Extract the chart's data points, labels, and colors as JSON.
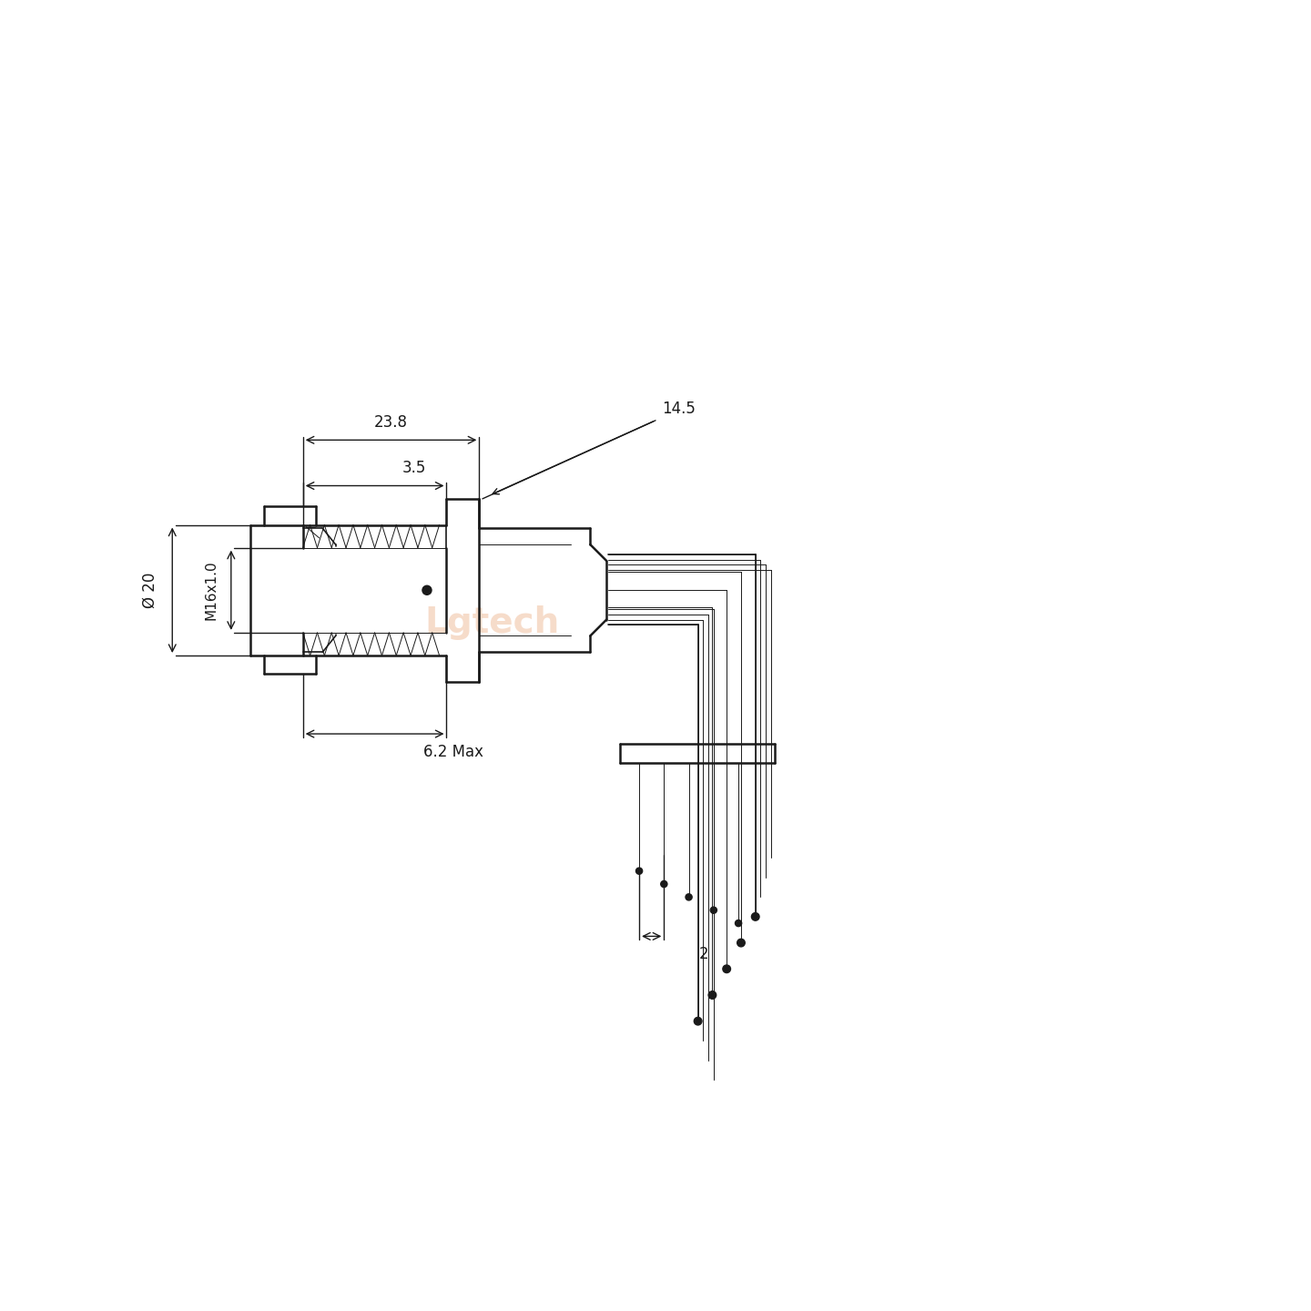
{
  "bg_color": "#ffffff",
  "line_color": "#1a1a1a",
  "figsize": [
    14.4,
    14.4
  ],
  "dpi": 100,
  "dim_overall_width": "23.8",
  "dim_thread_width": "3.5",
  "dim_flange": "14.5",
  "dim_diameter": "Ø 20",
  "dim_thread_label": "M16x1.0",
  "dim_pcb_protrusion": "6.2 Max",
  "dim_pin_spacing": "2",
  "watermark": "Lgtech",
  "watermark_color": "#f0c0a0"
}
